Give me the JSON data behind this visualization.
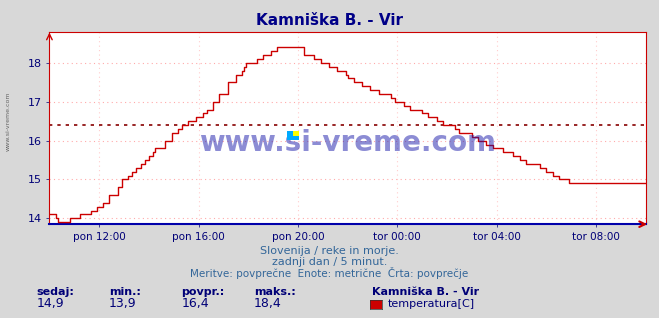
{
  "title": "Kamniška B. - Vir",
  "fig_bg_color": "#d8d8d8",
  "plot_bg_color": "#ffffff",
  "line_color": "#cc0000",
  "avg_line_color": "#880000",
  "avg_line_style": "dotted",
  "grid_color": "#ffaaaa",
  "grid_vcolor": "#ffcccc",
  "watermark": "www.si-vreme.com",
  "watermark_color": "#1a1aaa",
  "watermark_alpha": 0.5,
  "left_label": "www.si-vreme.com",
  "subtitle1": "Slovenija / reke in morje.",
  "subtitle2": "zadnji dan / 5 minut.",
  "subtitle3": "Meritve: povprečne  Enote: metrične  Črta: povprečje",
  "subtitle_color": "#336699",
  "stats_labels": [
    "sedaj:",
    "min.:",
    "povpr.:",
    "maks.:"
  ],
  "stats_values": [
    "14,9",
    "13,9",
    "16,4",
    "18,4"
  ],
  "legend_title": "Kamniška B. - Vir",
  "legend_label": "temperatura[C]",
  "legend_color": "#cc0000",
  "label_color": "#000077",
  "xlim": [
    0,
    288
  ],
  "ylim": [
    13.85,
    18.8
  ],
  "yticks": [
    14,
    15,
    16,
    17,
    18
  ],
  "xtick_positions": [
    24,
    72,
    120,
    168,
    216,
    264
  ],
  "xtick_labels": [
    "pon 12:00",
    "pon 16:00",
    "pon 20:00",
    "tor 00:00",
    "tor 04:00",
    "tor 08:00"
  ],
  "avg_value": 16.4,
  "spine_bottom_color": "#0000aa",
  "spine_other_color": "#cc0000"
}
